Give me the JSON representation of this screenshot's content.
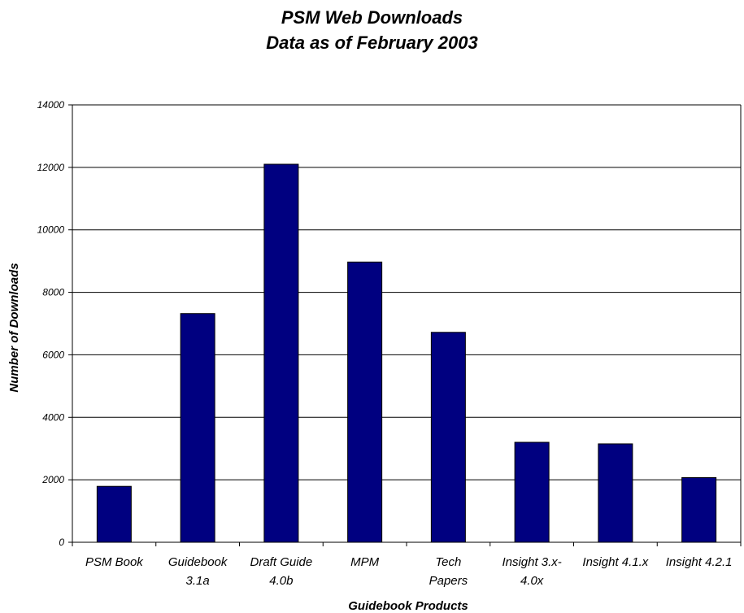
{
  "chart_data": {
    "type": "bar",
    "title": [
      "PSM Web Downloads",
      "Data as of February 2003"
    ],
    "xlabel": "Guidebook Products",
    "ylabel": "Number of Downloads",
    "categories": [
      [
        "PSM Book"
      ],
      [
        "Guidebook",
        "3.1a"
      ],
      [
        "Draft Guide",
        "4.0b"
      ],
      [
        "MPM"
      ],
      [
        "Tech",
        "Papers"
      ],
      [
        "Insight 3.x-",
        "4.0x"
      ],
      [
        "Insight 4.1.x"
      ],
      [
        "Insight 4.2.1"
      ]
    ],
    "values": [
      1790,
      7320,
      12100,
      8970,
      6720,
      3200,
      3150,
      2070
    ],
    "ylim": [
      0,
      14000
    ],
    "yticks": [
      0,
      2000,
      4000,
      6000,
      8000,
      10000,
      12000,
      14000
    ],
    "grid": true,
    "legend": "none",
    "colors": {
      "bar": "#000080",
      "bar_stroke": "#000000",
      "grid": "#000000",
      "axis": "#000000"
    }
  }
}
